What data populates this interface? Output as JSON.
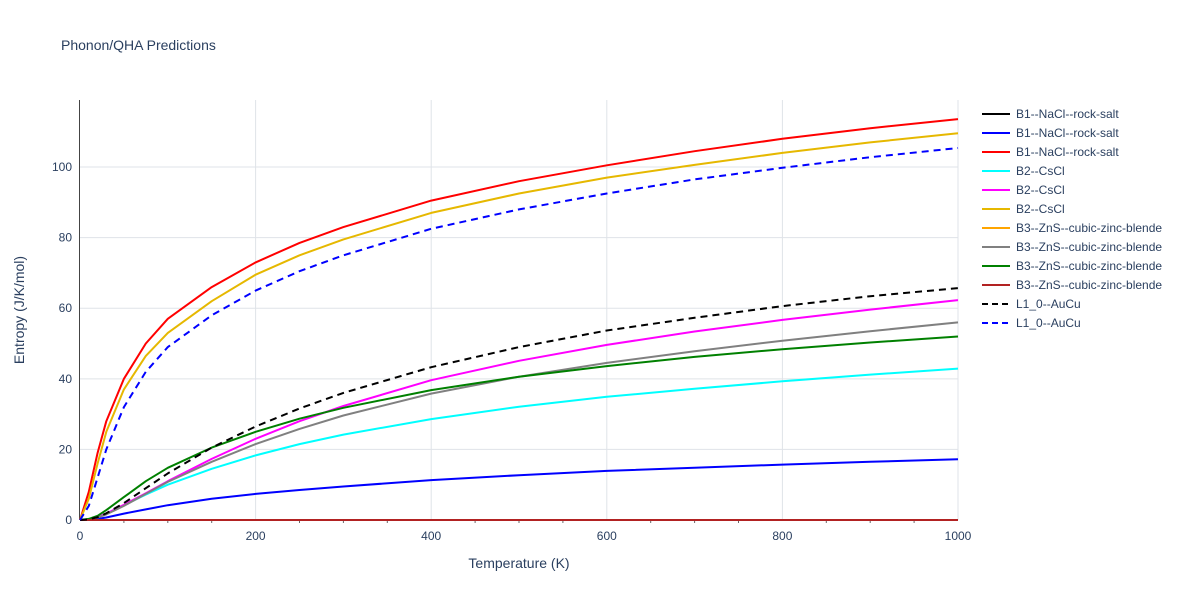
{
  "chart_data": {
    "type": "line",
    "title": "Phonon/QHA Predictions",
    "xlabel": "Temperature (K)",
    "ylabel": "Entropy (J/K/mol)",
    "xlim": [
      0,
      1000
    ],
    "ylim": [
      0,
      119
    ],
    "x_ticks": [
      0,
      200,
      400,
      600,
      800,
      1000
    ],
    "x_tick_labels": [
      "0",
      "200",
      "400",
      "600",
      "800",
      "1000"
    ],
    "y_ticks": [
      0,
      20,
      40,
      60,
      80,
      100
    ],
    "y_tick_labels": [
      "0",
      "20",
      "40",
      "60",
      "80",
      "100"
    ],
    "grid": true,
    "legend_position": "right",
    "x": [
      0,
      10,
      20,
      30,
      50,
      75,
      100,
      150,
      200,
      250,
      300,
      400,
      500,
      600,
      700,
      800,
      900,
      1000
    ],
    "series": [
      {
        "name": "B1--NaCl--rock-salt",
        "color": "#000000",
        "dash": "solid",
        "values": [
          0,
          0,
          0,
          0,
          0,
          0,
          0,
          0,
          0,
          0,
          0,
          0,
          0,
          0,
          0,
          0,
          0,
          0
        ]
      },
      {
        "name": "B1--NaCl--rock-salt",
        "color": "#0000ff",
        "dash": "solid",
        "values": [
          0,
          0.1,
          0.3,
          0.7,
          1.8,
          3.0,
          4.2,
          6.0,
          7.4,
          8.5,
          9.5,
          11.3,
          12.7,
          13.9,
          14.8,
          15.7,
          16.5,
          17.2
        ]
      },
      {
        "name": "B1--NaCl--rock-salt",
        "color": "#ff0000",
        "dash": "solid",
        "values": [
          0,
          8,
          19,
          28,
          40,
          50,
          57,
          66,
          73,
          78.5,
          83,
          90.5,
          96,
          100.5,
          104.5,
          108,
          111,
          113.6
        ]
      },
      {
        "name": "B2--CsCl",
        "color": "#00ffff",
        "dash": "solid",
        "values": [
          0,
          0.2,
          0.8,
          1.8,
          4.2,
          7.2,
          10.0,
          14.5,
          18.3,
          21.5,
          24.2,
          28.6,
          32.1,
          34.9,
          37.2,
          39.3,
          41.2,
          42.9
        ]
      },
      {
        "name": "B2--CsCl",
        "color": "#ff00ff",
        "dash": "solid",
        "values": [
          0,
          0.2,
          0.8,
          1.8,
          4.3,
          7.6,
          11.0,
          17.3,
          23.0,
          28.0,
          32.3,
          39.6,
          45.1,
          49.6,
          53.4,
          56.7,
          59.6,
          62.3
        ]
      },
      {
        "name": "B2--CsCl",
        "color": "#e6b800",
        "dash": "solid",
        "values": [
          0,
          6,
          16,
          25,
          37,
          46.5,
          53,
          62,
          69.5,
          75,
          79.5,
          87,
          92.5,
          97,
          100.6,
          104,
          107,
          109.6
        ]
      },
      {
        "name": "B3--ZnS--cubic-zinc-blende",
        "color": "#ffa500",
        "dash": "solid",
        "values": [
          0,
          0,
          0,
          0,
          0,
          0,
          0,
          0,
          0,
          0,
          0,
          0,
          0,
          0,
          0,
          0,
          0,
          0
        ]
      },
      {
        "name": "B3--ZnS--cubic-zinc-blende",
        "color": "#808080",
        "dash": "solid",
        "values": [
          0,
          0.2,
          0.7,
          1.6,
          4.0,
          7.4,
          10.8,
          16.5,
          21.5,
          25.8,
          29.6,
          35.8,
          40.6,
          44.5,
          47.8,
          50.8,
          53.5,
          56.0
        ]
      },
      {
        "name": "B3--ZnS--cubic-zinc-blende",
        "color": "#008000",
        "dash": "solid",
        "values": [
          0,
          0.3,
          1.2,
          2.8,
          6.5,
          11.0,
          14.8,
          20.5,
          25.0,
          28.7,
          31.8,
          36.8,
          40.6,
          43.6,
          46.2,
          48.4,
          50.3,
          52.0
        ]
      },
      {
        "name": "B3--ZnS--cubic-zinc-blende",
        "color": "#b22222",
        "dash": "solid",
        "values": [
          0,
          0,
          0,
          0,
          0,
          0,
          0,
          0,
          0,
          0,
          0,
          0,
          0,
          0,
          0,
          0,
          0,
          0
        ]
      },
      {
        "name": "L1_0--AuCu",
        "color": "#000000",
        "dash": "dash",
        "values": [
          0,
          0.2,
          0.8,
          1.9,
          4.8,
          9.0,
          13.2,
          20.5,
          26.5,
          31.6,
          36.0,
          43.3,
          49.0,
          53.7,
          57.3,
          60.6,
          63.4,
          65.7
        ]
      },
      {
        "name": "L1_0--AuCu",
        "color": "#0000ff",
        "dash": "dash",
        "values": [
          0,
          4,
          12,
          20,
          32,
          42,
          49,
          58,
          65,
          70.5,
          75,
          82.5,
          88,
          92.5,
          96.5,
          99.8,
          102.8,
          105.4
        ]
      }
    ]
  }
}
